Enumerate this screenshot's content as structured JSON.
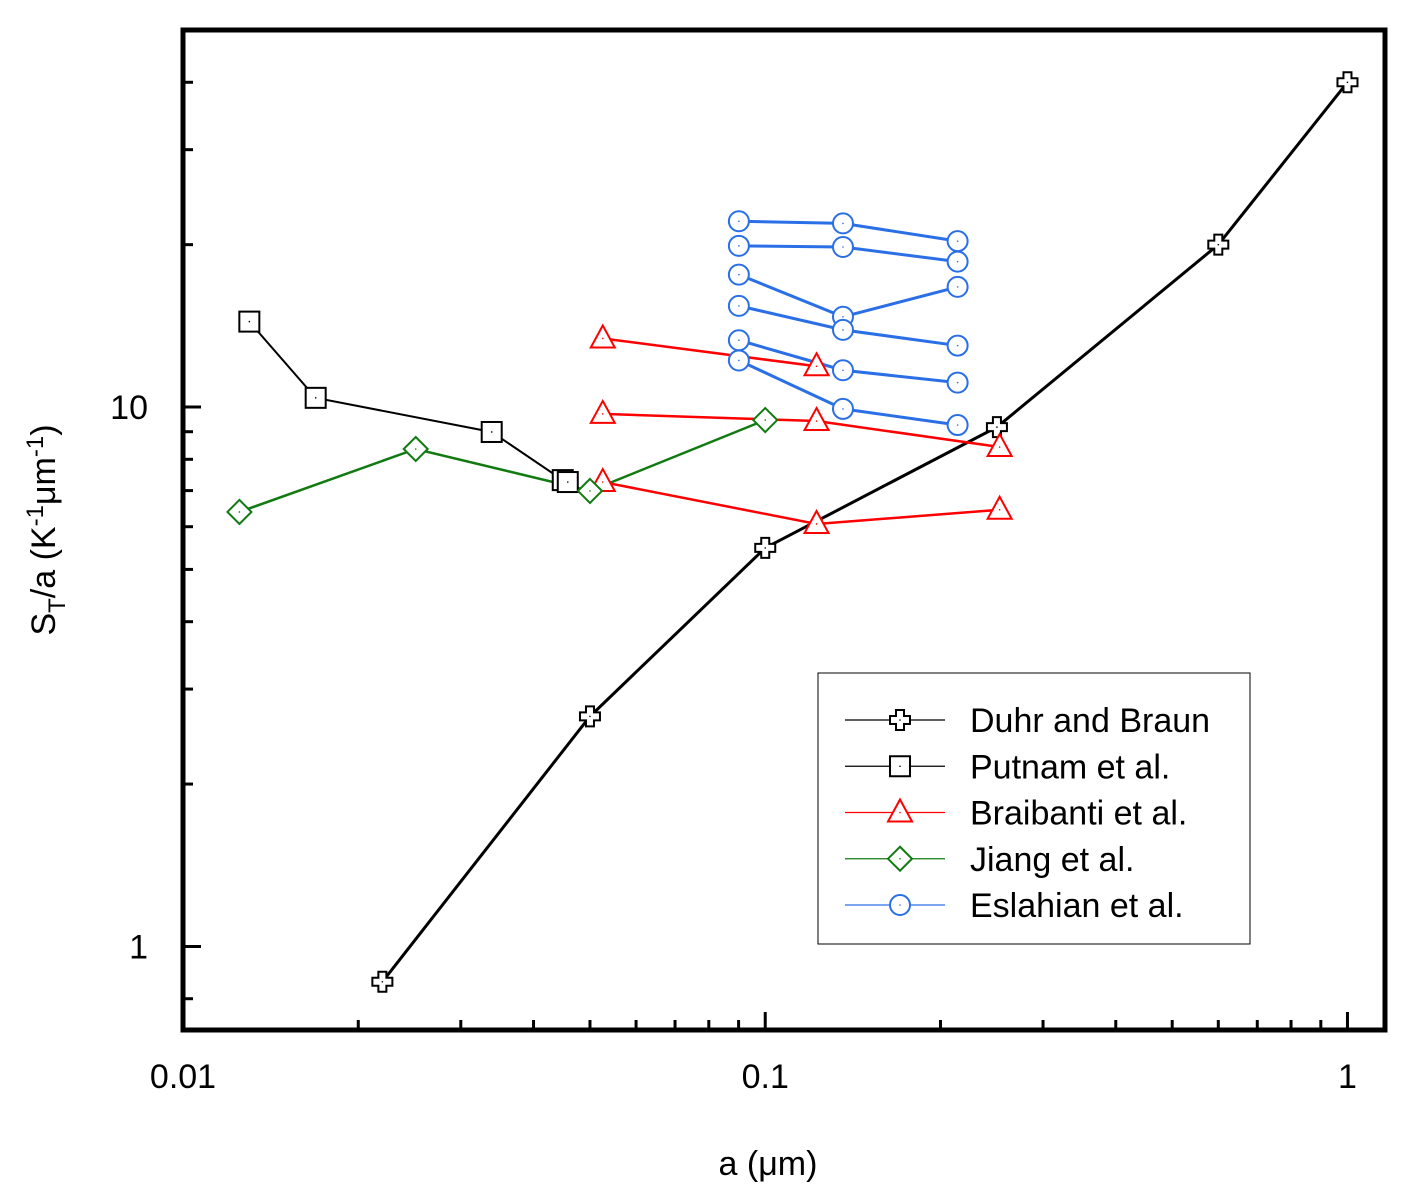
{
  "chart_data": {
    "type": "line",
    "xlabel": "a (μm)",
    "ylabel": [
      "S",
      "T",
      "/a (K",
      "-1",
      "μm",
      "-1",
      ")"
    ],
    "xscale": "log",
    "yscale": "log",
    "xlim": [
      0.01,
      1.16
    ],
    "ylim": [
      0.7,
      50
    ],
    "xticks": [
      0.01,
      0.1,
      1
    ],
    "xminor": [
      0.02,
      0.03,
      0.04,
      0.05,
      0.06,
      0.07,
      0.08,
      0.09,
      0.2,
      0.3,
      0.4,
      0.5,
      0.6,
      0.7,
      0.8,
      0.9
    ],
    "yticks": [
      1,
      10
    ],
    "yminor": [
      0.8,
      2,
      3,
      4,
      5,
      6,
      7,
      8,
      9,
      20,
      30,
      40
    ],
    "legend": "lower right",
    "series": [
      {
        "name": "Duhr and Braun",
        "color": "#000000",
        "marker": "plus",
        "lines": [
          {
            "x": [
              0.022,
              0.05,
              0.1,
              0.25,
              0.6,
              1
            ],
            "values": [
              0.86,
              2.67,
              5.48,
              9.18,
              20,
              40
            ]
          }
        ]
      },
      {
        "name": "Putnam et al.",
        "color": "#000000",
        "marker": "square",
        "lines": [
          {
            "x": [
              0.013,
              0.0169,
              0.0339,
              0.0449,
              0.0458
            ],
            "values": [
              14.4,
              10.4,
              8.99,
              7.32,
              7.26
            ]
          }
        ]
      },
      {
        "name": "Braibanti et al.",
        "color": "#ff0000",
        "marker": "triangle",
        "lines": [
          {
            "x": [
              0.0526,
              0.1225
            ],
            "values": [
              13.4,
              11.9
            ]
          },
          {
            "x": [
              0.0526,
              0.1225,
              0.2527
            ],
            "values": [
              9.71,
              9.42,
              8.43
            ]
          },
          {
            "x": [
              0.0526,
              0.1225,
              0.2527
            ],
            "values": [
              7.26,
              6.07,
              6.45
            ]
          }
        ]
      },
      {
        "name": "Jiang et al.",
        "color": "#117a11",
        "marker": "diamond",
        "lines": [
          {
            "x": [
              0.0125,
              0.0251,
              0.05,
              0.1
            ],
            "values": [
              6.39,
              8.36,
              6.99,
              9.46
            ]
          }
        ]
      },
      {
        "name": "Eslahian et al.",
        "color": "#2a6fe6",
        "marker": "circle",
        "lines": [
          {
            "x": [
              0.0901,
              0.136,
              0.214
            ],
            "values": [
              22.1,
              21.9,
              20.3
            ]
          },
          {
            "x": [
              0.0901,
              0.136,
              0.214
            ],
            "values": [
              19.9,
              19.8,
              18.6
            ]
          },
          {
            "x": [
              0.0901,
              0.136,
              0.214
            ],
            "values": [
              17.6,
              14.7,
              16.7
            ]
          },
          {
            "x": [
              0.0901,
              0.136,
              0.214
            ],
            "values": [
              15.4,
              13.9,
              13.0
            ]
          },
          {
            "x": [
              0.0901,
              0.136,
              0.214
            ],
            "values": [
              13.3,
              11.7,
              11.1
            ]
          },
          {
            "x": [
              0.0901,
              0.136,
              0.214
            ],
            "values": [
              12.2,
              9.92,
              9.26
            ]
          }
        ]
      }
    ]
  }
}
